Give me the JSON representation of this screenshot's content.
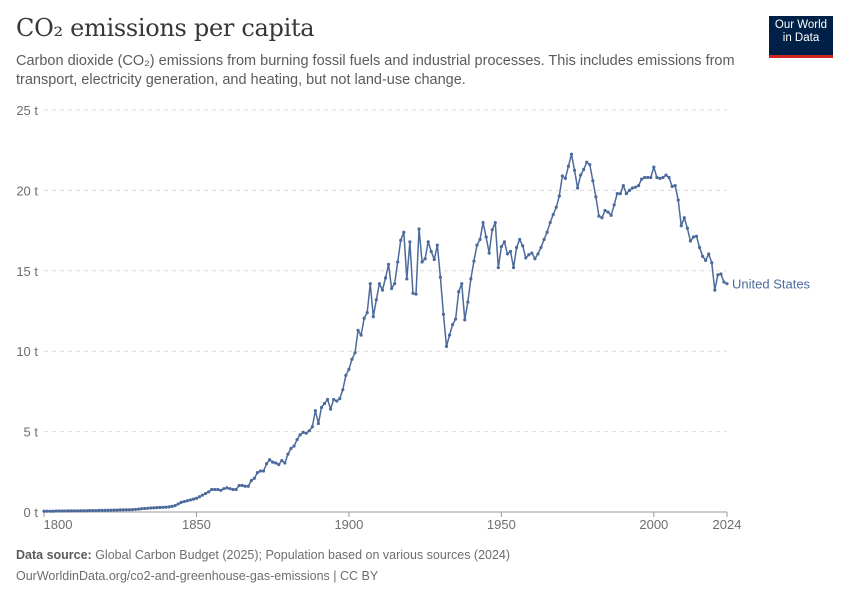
{
  "header": {
    "title": "CO₂ emissions per capita",
    "subtitle": "Carbon dioxide (CO₂) emissions from burning fossil fuels and industrial processes. This includes emissions from transport, electricity generation, and heating, but not land-use change.",
    "logo_line1": "Our World",
    "logo_line2": "in Data"
  },
  "footer": {
    "source_label": "Data source:",
    "source_text": " Global Carbon Budget (2025); Population based on various sources (2024)",
    "url": "OurWorldinData.org/co2-and-greenhouse-gas-emissions | CC BY"
  },
  "colors": {
    "line": "#4c6a9c",
    "logo_bg": "#002147",
    "logo_accent": "#ce261e"
  },
  "chart_data": {
    "type": "line",
    "title": "CO₂ emissions per capita",
    "xlabel": "",
    "ylabel": "",
    "xlim": [
      1800,
      2024
    ],
    "ylim": [
      0,
      25
    ],
    "grid": "horizontal dashed",
    "yticks": [
      0,
      5,
      10,
      15,
      20,
      25
    ],
    "ytick_labels": [
      "0 t",
      "5 t",
      "10 t",
      "15 t",
      "20 t",
      "25 t"
    ],
    "xticks": [
      1800,
      1850,
      1900,
      1950,
      2000,
      2024
    ],
    "xtick_labels": [
      "1800",
      "1850",
      "1900",
      "1950",
      "2000",
      "2024"
    ],
    "series": [
      {
        "name": "United States",
        "start_year": 1800,
        "values": [
          0.05,
          0.05,
          0.05,
          0.05,
          0.06,
          0.06,
          0.06,
          0.06,
          0.07,
          0.07,
          0.07,
          0.07,
          0.08,
          0.08,
          0.08,
          0.09,
          0.09,
          0.09,
          0.1,
          0.1,
          0.1,
          0.11,
          0.11,
          0.12,
          0.12,
          0.13,
          0.13,
          0.14,
          0.14,
          0.15,
          0.16,
          0.18,
          0.2,
          0.22,
          0.23,
          0.25,
          0.26,
          0.27,
          0.28,
          0.29,
          0.3,
          0.32,
          0.35,
          0.4,
          0.5,
          0.6,
          0.65,
          0.7,
          0.75,
          0.8,
          0.85,
          0.95,
          1.05,
          1.15,
          1.25,
          1.4,
          1.4,
          1.4,
          1.35,
          1.45,
          1.5,
          1.45,
          1.4,
          1.4,
          1.65,
          1.65,
          1.6,
          1.6,
          1.95,
          2.1,
          2.45,
          2.55,
          2.55,
          3.0,
          3.25,
          3.1,
          3.05,
          2.95,
          3.2,
          3.05,
          3.6,
          3.95,
          4.1,
          4.5,
          4.8,
          4.95,
          4.9,
          5.05,
          5.3,
          6.3,
          5.5,
          6.5,
          6.75,
          7.0,
          6.4,
          7.0,
          6.9,
          7.05,
          7.6,
          8.5,
          8.87,
          9.5,
          9.9,
          11.3,
          11.0,
          12.05,
          12.4,
          14.2,
          12.15,
          13.2,
          14.2,
          13.8,
          14.55,
          15.4,
          13.9,
          14.2,
          15.55,
          16.9,
          17.4,
          14.5,
          16.8,
          13.6,
          13.55,
          17.6,
          15.55,
          15.75,
          16.8,
          16.2,
          15.7,
          16.6,
          14.6,
          12.3,
          10.3,
          11.0,
          11.65,
          12.0,
          13.7,
          14.2,
          11.95,
          13.05,
          14.5,
          15.6,
          16.6,
          16.95,
          18.0,
          17.1,
          16.1,
          17.55,
          18.0,
          15.2,
          16.5,
          16.8,
          16.05,
          16.2,
          15.2,
          16.45,
          16.95,
          16.55,
          15.8,
          16.0,
          16.1,
          15.75,
          16.05,
          16.45,
          16.95,
          17.4,
          18.0,
          18.5,
          18.95,
          19.65,
          20.9,
          20.75,
          21.5,
          22.25,
          21.25,
          20.15,
          20.95,
          21.3,
          21.75,
          21.6,
          20.6,
          19.6,
          18.4,
          18.3,
          18.75,
          18.65,
          18.45,
          19.1,
          19.8,
          19.8,
          20.3,
          19.8,
          20.0,
          20.15,
          20.2,
          20.3,
          20.7,
          20.8,
          20.8,
          20.8,
          21.45,
          20.8,
          20.75,
          20.8,
          20.95,
          20.8,
          20.25,
          20.3,
          19.4,
          17.8,
          18.3,
          17.65,
          16.85,
          17.1,
          17.15,
          16.45,
          15.9,
          15.65,
          16.05,
          15.5,
          13.8,
          14.75,
          14.8,
          14.3,
          14.2
        ]
      }
    ]
  }
}
